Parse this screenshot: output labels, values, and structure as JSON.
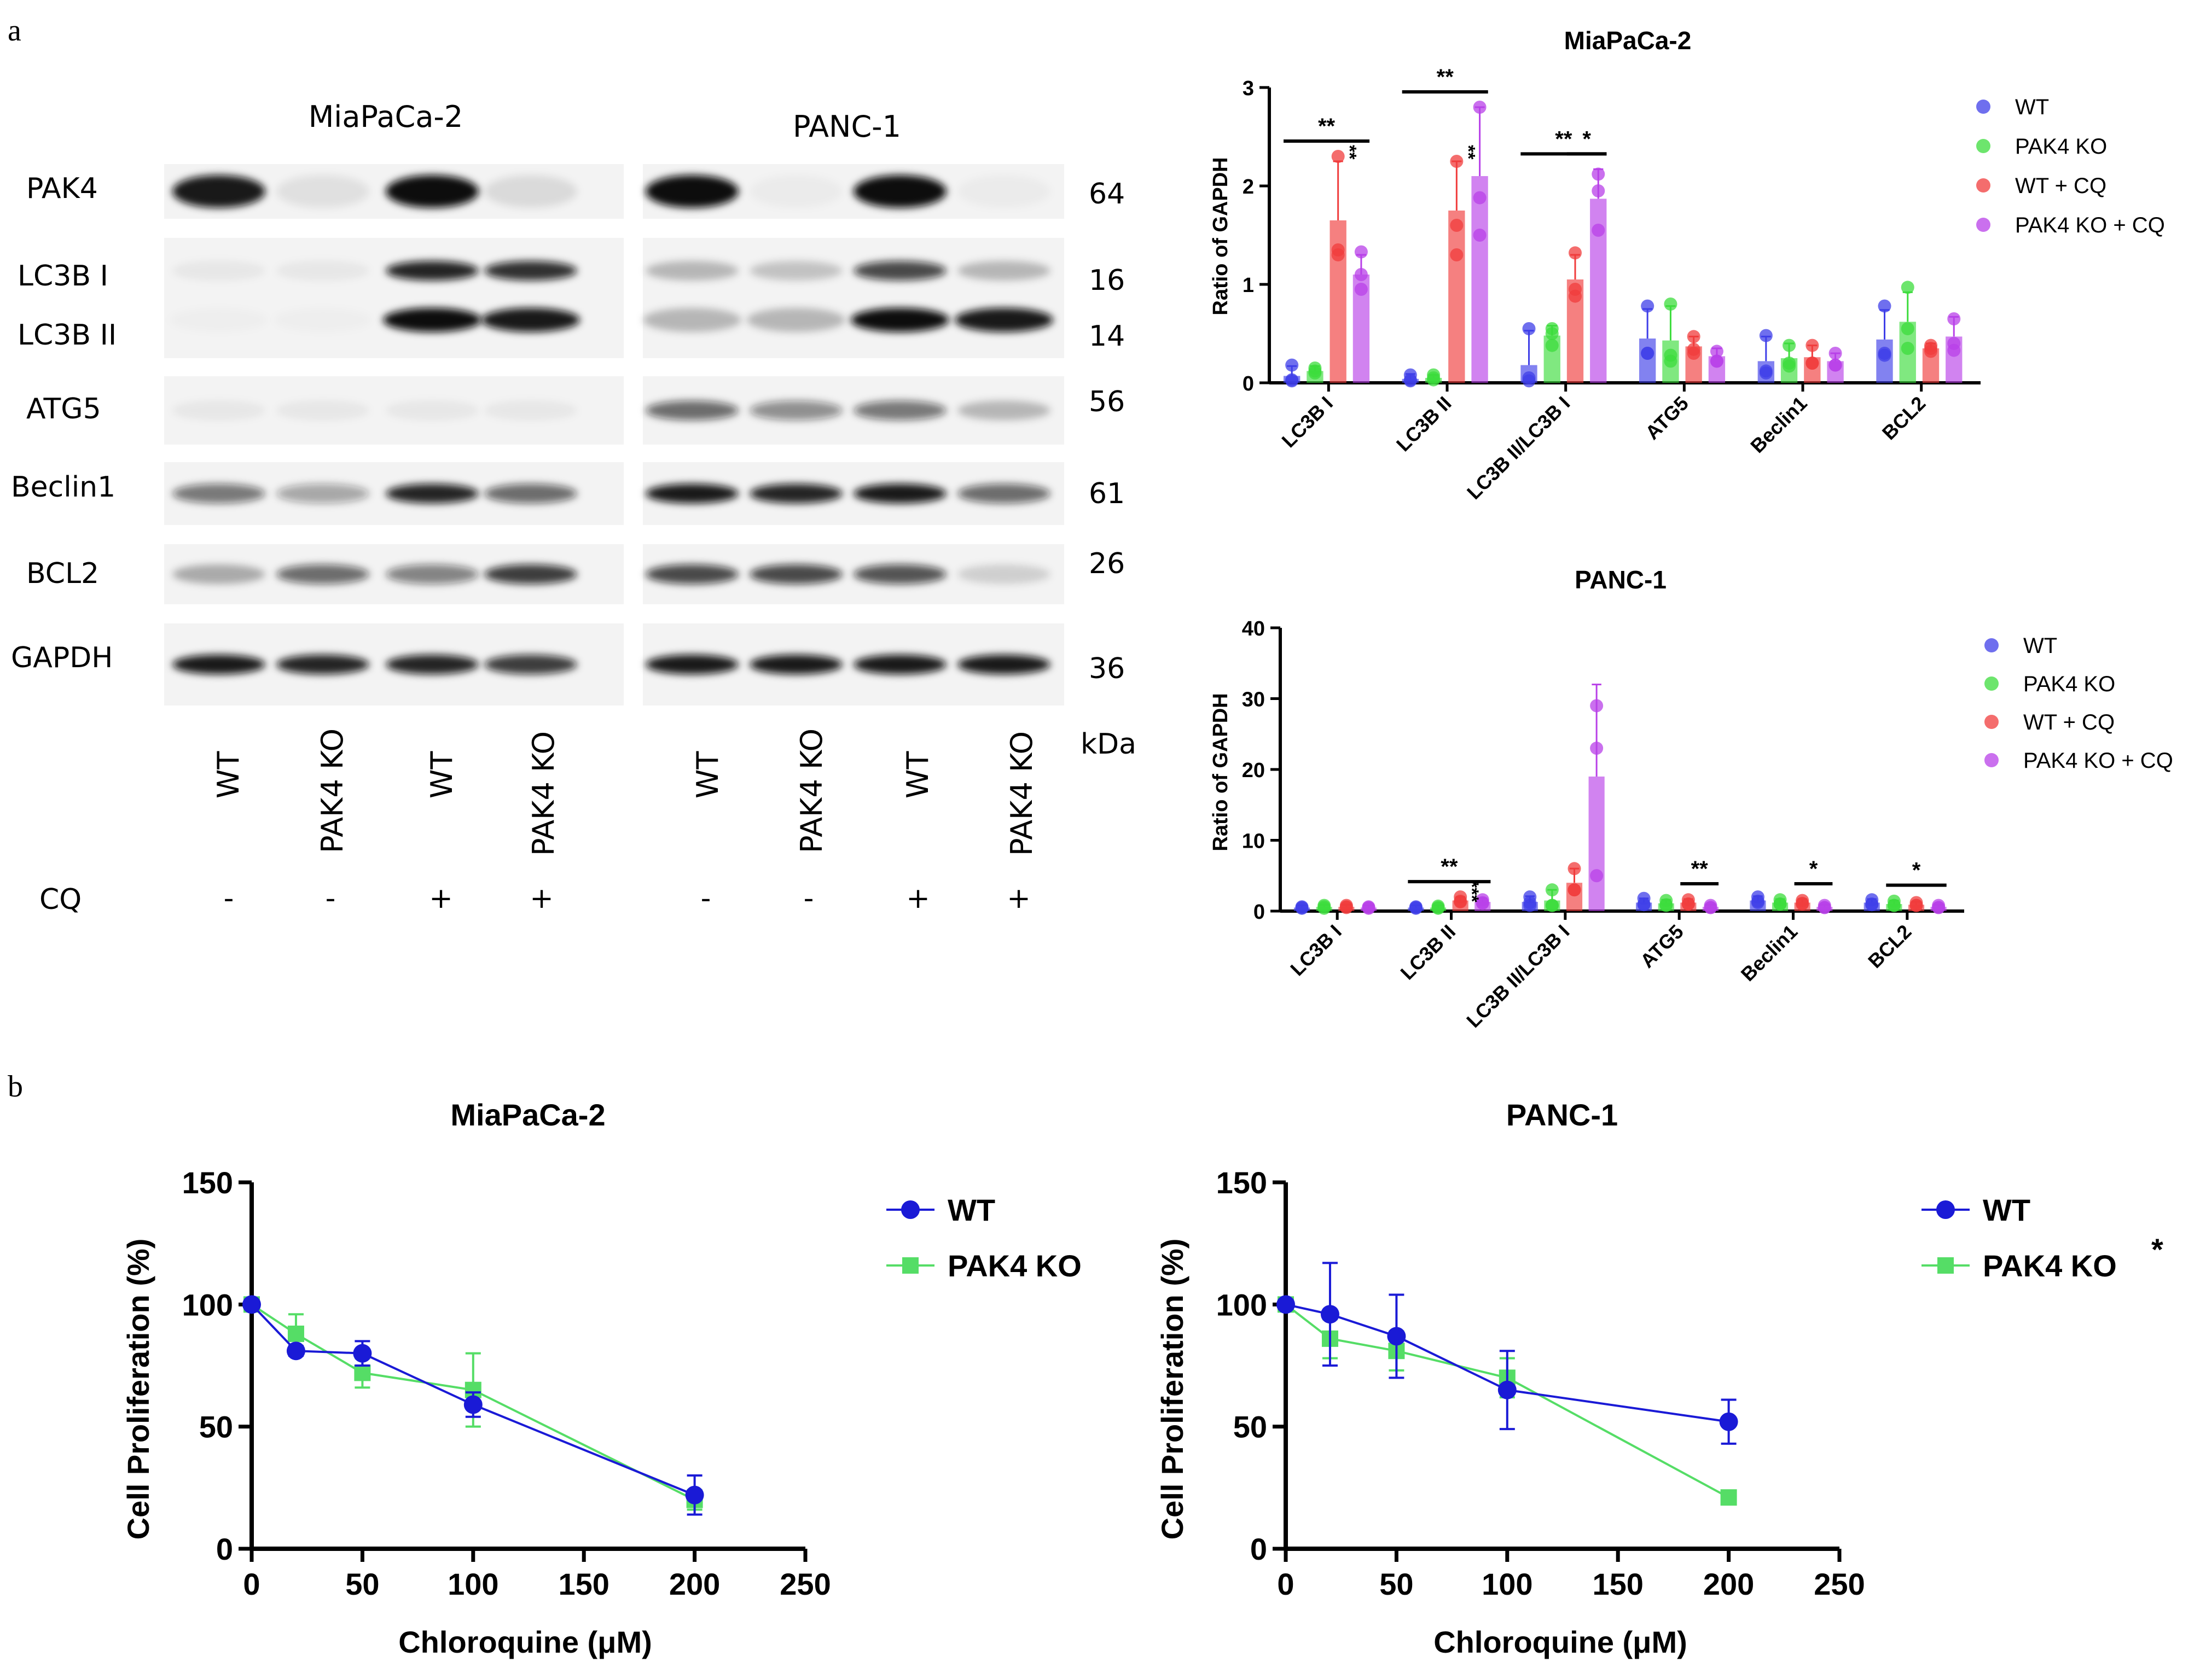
{
  "panel_labels": {
    "a": "a",
    "b": "b"
  },
  "blot": {
    "cell_lines": [
      "MiaPaCa-2",
      "PANC-1"
    ],
    "proteins": [
      "PAK4",
      "LC3B I",
      "LC3B II",
      "ATG5",
      "Beclin1",
      "BCL2",
      "GAPDH"
    ],
    "kda": [
      "64",
      "16",
      "14",
      "56",
      "61",
      "26",
      "36"
    ],
    "kda_label": "kDa",
    "lanes": [
      "WT",
      "PAK4 KO",
      "WT",
      "PAK4 KO",
      "WT",
      "PAK4 KO",
      "WT",
      "PAK4 KO"
    ],
    "cq_label": "CQ",
    "cq": [
      "-",
      "-",
      "+",
      "+",
      "-",
      "-",
      "+",
      "+"
    ]
  },
  "colors": {
    "wt": "#3f3fe8",
    "ko": "#3cdc3c",
    "wtcq": "#f03c3c",
    "kocq": "#b840e8",
    "line_wt": "#1a1ad6",
    "line_ko": "#55dd66",
    "axis": "#000000"
  },
  "chart_data": [
    {
      "type": "bar",
      "title": "MiaPaCa-2",
      "ylabel": "Ratio of GAPDH",
      "ylim": [
        0,
        3
      ],
      "yticks": [
        "0",
        "1",
        "2",
        "3"
      ],
      "categories": [
        "LC3B I",
        "LC3B II",
        "LC3B II/LC3B I",
        "ATG5",
        "Beclin1",
        "BCL2"
      ],
      "series": [
        {
          "name": "WT",
          "values": [
            0.07,
            0.04,
            0.18,
            0.45,
            0.22,
            0.44
          ],
          "errors": [
            0.1,
            0.05,
            0.35,
            0.3,
            0.25,
            0.3
          ],
          "points": [
            [
              0.18,
              0.02,
              0.03
            ],
            [
              0.08,
              0.02,
              0.03
            ],
            [
              0.55,
              0.02,
              0.05
            ],
            [
              0.78,
              0.3,
              0.3
            ],
            [
              0.48,
              0.12,
              0.1
            ],
            [
              0.78,
              0.3,
              0.28
            ]
          ]
        },
        {
          "name": "PAK4 KO",
          "values": [
            0.12,
            0.05,
            0.48,
            0.43,
            0.25,
            0.62
          ],
          "errors": [
            0.05,
            0.03,
            0.1,
            0.35,
            0.15,
            0.3
          ],
          "points": [
            [
              0.15,
              0.1,
              0.12
            ],
            [
              0.08,
              0.03,
              0.05
            ],
            [
              0.55,
              0.5,
              0.38
            ],
            [
              0.8,
              0.28,
              0.22
            ],
            [
              0.38,
              0.2,
              0.17
            ],
            [
              0.97,
              0.55,
              0.35
            ]
          ]
        },
        {
          "name": "WT + CQ",
          "values": [
            1.65,
            1.75,
            1.05,
            0.37,
            0.26,
            0.35
          ],
          "errors": [
            0.6,
            0.5,
            0.25,
            0.1,
            0.12,
            0.05
          ],
          "points": [
            [
              2.3,
              1.35,
              1.3
            ],
            [
              2.25,
              1.6,
              1.3
            ],
            [
              1.32,
              0.95,
              0.88
            ],
            [
              0.47,
              0.3,
              0.34
            ],
            [
              0.38,
              0.2,
              0.2
            ],
            [
              0.38,
              0.32,
              0.35
            ]
          ]
        },
        {
          "name": "PAK4 KO + CQ",
          "values": [
            1.1,
            2.1,
            1.87,
            0.27,
            0.22,
            0.47
          ],
          "errors": [
            0.2,
            0.7,
            0.3,
            0.08,
            0.08,
            0.2
          ],
          "points": [
            [
              1.33,
              1.1,
              0.95
            ],
            [
              2.8,
              1.88,
              1.5
            ],
            [
              2.12,
              1.95,
              1.55
            ],
            [
              0.32,
              0.22,
              0.22
            ],
            [
              0.3,
              0.18,
              0.18
            ],
            [
              0.65,
              0.4,
              0.33
            ]
          ]
        }
      ],
      "significance": [
        {
          "category": 0,
          "from": 0,
          "to": 3,
          "label": "**"
        },
        {
          "category": 0,
          "series": 2,
          "label": "**",
          "vertical": true
        },
        {
          "category": 1,
          "from": 0,
          "to": 3,
          "label": "**"
        },
        {
          "category": 1,
          "series": 2,
          "label": "**",
          "vertical": true
        },
        {
          "category": 2,
          "from": 0,
          "to": 3,
          "label": "**"
        },
        {
          "category": 2,
          "from": 2,
          "to": 3,
          "label": "*"
        }
      ],
      "legend": "right"
    },
    {
      "type": "bar",
      "title": "PANC-1",
      "ylabel": "Ratio of GAPDH",
      "ylim": [
        0,
        40
      ],
      "yticks": [
        "0",
        "10",
        "20",
        "30",
        "40"
      ],
      "categories": [
        "LC3B I",
        "LC3B II",
        "LC3B II/LC3B I",
        "ATG5",
        "Beclin1",
        "BCL2"
      ],
      "series": [
        {
          "name": "WT",
          "values": [
            0.5,
            0.5,
            1.3,
            1.2,
            1.5,
            1.2
          ],
          "errors": [
            0.3,
            0.3,
            0.8,
            0.6,
            0.6,
            0.5
          ],
          "points": [
            [
              0.6,
              0.4,
              0.5
            ],
            [
              0.6,
              0.4,
              0.5
            ],
            [
              2.0,
              0.8,
              1.2
            ],
            [
              1.8,
              0.9,
              1.0
            ],
            [
              2.0,
              1.2,
              1.4
            ],
            [
              1.6,
              0.9,
              1.0
            ]
          ]
        },
        {
          "name": "PAK4 KO",
          "values": [
            0.6,
            0.5,
            1.5,
            1.1,
            1.2,
            1.0
          ],
          "errors": [
            0.3,
            0.3,
            1.5,
            0.5,
            0.5,
            0.5
          ],
          "points": [
            [
              0.8,
              0.4,
              0.6
            ],
            [
              0.7,
              0.4,
              0.5
            ],
            [
              3.0,
              0.8,
              0.8
            ],
            [
              1.5,
              0.8,
              0.9
            ],
            [
              1.6,
              1.0,
              1.0
            ],
            [
              1.4,
              0.8,
              0.8
            ]
          ]
        },
        {
          "name": "WT + CQ",
          "values": [
            0.6,
            1.5,
            4.0,
            1.2,
            1.2,
            0.9
          ],
          "errors": [
            0.3,
            0.5,
            2.0,
            0.5,
            0.5,
            0.4
          ],
          "points": [
            [
              0.8,
              0.5,
              0.6
            ],
            [
              2.0,
              1.3,
              1.4
            ],
            [
              6.0,
              3.0,
              3.0
            ],
            [
              1.6,
              1.0,
              1.0
            ],
            [
              1.5,
              1.0,
              1.1
            ],
            [
              1.2,
              0.8,
              0.8
            ]
          ]
        },
        {
          "name": "PAK4 KO + CQ",
          "values": [
            0.5,
            1.3,
            19.0,
            0.6,
            0.6,
            0.6
          ],
          "errors": [
            0.3,
            0.5,
            13.0,
            0.3,
            0.3,
            0.3
          ],
          "points": [
            [
              0.6,
              0.4,
              0.5
            ],
            [
              1.6,
              1.1,
              1.2
            ],
            [
              29.0,
              23.0,
              5.0
            ],
            [
              0.8,
              0.5,
              0.5
            ],
            [
              0.8,
              0.5,
              0.5
            ],
            [
              0.8,
              0.5,
              0.5
            ]
          ]
        }
      ],
      "significance": [
        {
          "category": 1,
          "from": 0,
          "to": 3,
          "label": "**"
        },
        {
          "category": 1,
          "series": 2,
          "label": "***",
          "vertical": true
        },
        {
          "category": 3,
          "from": 2,
          "to": 3,
          "label": "**"
        },
        {
          "category": 4,
          "from": 2,
          "to": 3,
          "label": "*"
        },
        {
          "category": 5,
          "from": 1,
          "to": 3,
          "label": "*"
        }
      ],
      "legend": "right"
    },
    {
      "type": "line",
      "title": "MiaPaCa-2",
      "xlabel": "Chloroquine (μM)",
      "ylabel": "Cell Proliferation (%)",
      "xlim": [
        0,
        250
      ],
      "ylim": [
        0,
        150
      ],
      "xticks": [
        "0",
        "50",
        "100",
        "150",
        "200",
        "250"
      ],
      "yticks": [
        "0",
        "50",
        "100",
        "150"
      ],
      "series": [
        {
          "name": "WT",
          "marker": "circle",
          "x": [
            0,
            20,
            50,
            100,
            200
          ],
          "y": [
            100,
            81,
            80,
            59,
            22
          ],
          "err": [
            0,
            2,
            5,
            5,
            8
          ]
        },
        {
          "name": "PAK4 KO",
          "marker": "square",
          "x": [
            0,
            20,
            50,
            100,
            200
          ],
          "y": [
            100,
            88,
            72,
            65,
            20
          ],
          "err": [
            0,
            8,
            6,
            15,
            4
          ]
        }
      ],
      "legend": "right"
    },
    {
      "type": "line",
      "title": "PANC-1",
      "xlabel": "Chloroquine (μM)",
      "ylabel": "Cell Proliferation (%)",
      "xlim": [
        0,
        250
      ],
      "ylim": [
        0,
        150
      ],
      "xticks": [
        "0",
        "50",
        "100",
        "150",
        "200",
        "250"
      ],
      "yticks": [
        "0",
        "50",
        "100",
        "150"
      ],
      "series": [
        {
          "name": "WT",
          "marker": "circle",
          "x": [
            0,
            20,
            50,
            100,
            200
          ],
          "y": [
            100,
            96,
            87,
            65,
            52
          ],
          "err": [
            0,
            21,
            17,
            16,
            9
          ]
        },
        {
          "name": "PAK4 KO",
          "marker": "square",
          "x": [
            0,
            20,
            50,
            100,
            200
          ],
          "y": [
            100,
            86,
            81,
            70,
            21
          ],
          "err": [
            0,
            8,
            8,
            8,
            2
          ]
        }
      ],
      "legend_suffix": "*",
      "legend": "right"
    }
  ]
}
